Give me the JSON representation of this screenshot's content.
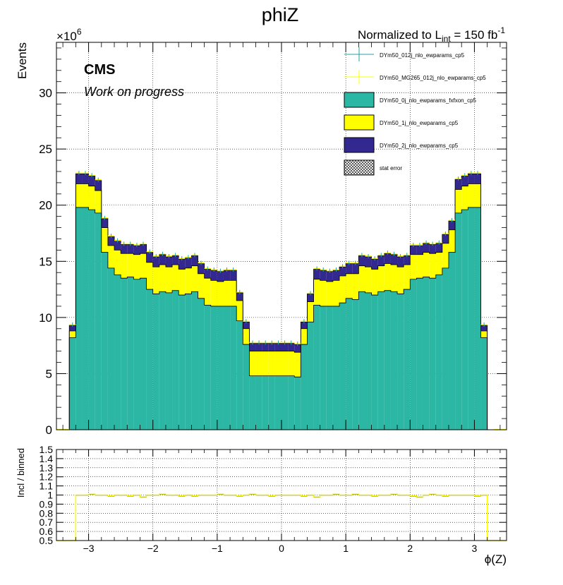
{
  "chart_data": [
    {
      "type": "bar",
      "title": "phiZ",
      "lumi_prefix": "Normalized to L",
      "lumi_sub": "int",
      "lumi_value": " = 150 fb",
      "lumi_sup": "-1",
      "experiment": "CMS",
      "status": "Work on progress",
      "ylabel": "Events",
      "xlabel": "ϕ(Z)",
      "exponent_base": "×10",
      "exponent_power": "6",
      "xlim": [
        -3.5,
        3.5
      ],
      "ylim": [
        0,
        34.5
      ],
      "grid": true,
      "legend_position": "top-right",
      "x_tick_labels": [
        "−3",
        "−2",
        "−1",
        "0",
        "1",
        "2",
        "3"
      ],
      "x_ticks": [
        -3,
        -2,
        -1,
        0,
        1,
        2,
        3
      ],
      "y_ticks": [
        0,
        5,
        10,
        15,
        20,
        25,
        30
      ],
      "y_tick_labels": [
        "0",
        "5",
        "10",
        "15",
        "20",
        "25",
        "30"
      ],
      "bin_edges": [
        -3.5,
        -3.3,
        -3.2,
        -3.1,
        -3.0,
        -2.9,
        -2.8,
        -2.7,
        -2.6,
        -2.5,
        -2.4,
        -2.3,
        -2.2,
        -2.1,
        -2.0,
        -1.9,
        -1.8,
        -1.7,
        -1.6,
        -1.5,
        -1.4,
        -1.3,
        -1.2,
        -1.1,
        -1.0,
        -0.9,
        -0.8,
        -0.7,
        -0.6,
        -0.5,
        -0.4,
        -0.3,
        -0.2,
        -0.1,
        0.0,
        0.1,
        0.2,
        0.3,
        0.4,
        0.5,
        0.6,
        0.7,
        0.8,
        0.9,
        1.0,
        1.1,
        1.2,
        1.3,
        1.4,
        1.5,
        1.6,
        1.7,
        1.8,
        1.9,
        2.0,
        2.1,
        2.2,
        2.3,
        2.4,
        2.5,
        2.6,
        2.7,
        2.8,
        2.9,
        3.0,
        3.1,
        3.2,
        3.3,
        3.5
      ],
      "series": [
        {
          "name": "DYm50_0j_nlo_ewparams_fxfxon_cp5",
          "color": "#2bb7a3",
          "values": [
            0,
            8.2,
            19.8,
            19.8,
            19.6,
            19.3,
            15.8,
            14.4,
            13.8,
            13.5,
            13.6,
            13.4,
            13.5,
            12.5,
            12.1,
            12.3,
            12.2,
            12.4,
            12.0,
            12.1,
            12.3,
            11.7,
            11.1,
            11.0,
            11.0,
            11.0,
            11.0,
            9.7,
            7.6,
            4.8,
            4.8,
            4.8,
            4.8,
            4.8,
            4.8,
            4.8,
            4.7,
            7.6,
            9.6,
            11.1,
            11.0,
            11.0,
            11.0,
            11.3,
            11.7,
            11.6,
            12.3,
            12.2,
            12.0,
            12.3,
            12.4,
            12.3,
            12.1,
            12.5,
            13.4,
            13.5,
            13.6,
            13.5,
            13.8,
            14.4,
            15.8,
            19.3,
            19.6,
            19.8,
            19.8,
            8.2,
            0
          ]
        },
        {
          "name": "DYm50_1j_nlo_ewparams_cp5",
          "color": "#ffff00",
          "values": [
            0,
            0.6,
            2.1,
            2.1,
            2.1,
            2.0,
            2.2,
            2.0,
            2.2,
            2.2,
            2.1,
            2.2,
            2.2,
            2.4,
            2.4,
            2.4,
            2.3,
            2.3,
            2.3,
            2.3,
            2.3,
            2.2,
            2.4,
            2.3,
            2.2,
            2.3,
            2.3,
            1.8,
            1.4,
            2.2,
            2.2,
            2.2,
            2.2,
            2.2,
            2.2,
            2.2,
            2.2,
            1.4,
            1.8,
            2.3,
            2.3,
            2.2,
            2.3,
            2.4,
            2.2,
            2.3,
            2.3,
            2.3,
            2.3,
            2.3,
            2.4,
            2.4,
            2.4,
            2.2,
            2.2,
            2.1,
            2.2,
            2.2,
            2.0,
            2.2,
            2.0,
            2.1,
            2.1,
            2.1,
            2.1,
            0.6,
            0
          ]
        },
        {
          "name": "DYm50_2j_nlo_ewparams_cp5",
          "color": "#33288f",
          "values": [
            0,
            0.5,
            0.9,
            0.9,
            0.9,
            0.9,
            0.8,
            0.8,
            0.8,
            0.8,
            0.8,
            0.8,
            0.8,
            0.9,
            0.9,
            0.9,
            0.9,
            0.8,
            0.9,
            0.9,
            0.9,
            0.9,
            0.8,
            0.9,
            0.9,
            0.9,
            0.9,
            0.7,
            0.6,
            0.7,
            0.7,
            0.7,
            0.7,
            0.7,
            0.7,
            0.7,
            0.7,
            0.6,
            0.7,
            0.9,
            0.9,
            0.9,
            0.9,
            0.8,
            0.9,
            0.9,
            0.9,
            0.9,
            0.9,
            0.9,
            0.9,
            0.9,
            0.9,
            0.8,
            0.8,
            0.8,
            0.8,
            0.8,
            0.8,
            0.8,
            0.8,
            0.9,
            0.9,
            0.9,
            0.9,
            0.5,
            0
          ]
        }
      ],
      "legend": [
        {
          "label": "DYm50_012j_nlo_ewparams_cp5",
          "style": "marker",
          "color": "#2a9fa8"
        },
        {
          "label": "DYm50_MG265_012j_nlo_ewparams_cp5",
          "style": "marker",
          "color": "#ffff00"
        },
        {
          "label": "DYm50_0j_nlo_ewparams_fxfxon_cp5",
          "style": "fill",
          "color": "#2bb7a3"
        },
        {
          "label": "DYm50_1j_nlo_ewparams_cp5",
          "style": "fill",
          "color": "#ffff00"
        },
        {
          "label": "DYm50_2j_nlo_ewparams_cp5",
          "style": "fill",
          "color": "#33288f"
        },
        {
          "label": "stat error",
          "style": "hatch",
          "color": "#000000"
        }
      ]
    },
    {
      "type": "line",
      "ylabel": "Incl / binned",
      "xlim": [
        -3.5,
        3.5
      ],
      "ylim": [
        0.5,
        1.5
      ],
      "grid": true,
      "y_ticks": [
        0.5,
        0.6,
        0.7,
        0.8,
        0.9,
        1.0,
        1.1,
        1.2,
        1.3,
        1.4,
        1.5
      ],
      "y_tick_labels": [
        "0.5",
        "0.6",
        "0.7",
        "0.8",
        "0.9",
        "1",
        "1.1",
        "1.2",
        "1.3",
        "1.4",
        "1.5"
      ],
      "series": [
        {
          "color": "#ffff00",
          "x_range": [
            -3.2,
            3.2
          ],
          "values": [
            1.0,
            1.0,
            1.01,
            1.0,
            1.0,
            0.99,
            1.0,
            1.0,
            0.99,
            1.0,
            0.98,
            1.0,
            1.0,
            1.01,
            1.0,
            1.0,
            0.99,
            1.0,
            0.99,
            1.0,
            1.0,
            1.0,
            1.01,
            1.0,
            1.0,
            0.99,
            1.0,
            1.01,
            1.0,
            1.0,
            0.99,
            1.0,
            1.0,
            1.0,
            1.0,
            0.99,
            1.0,
            0.98,
            1.0,
            1.0,
            1.01,
            1.0,
            1.0,
            1.01,
            1.0,
            1.0,
            0.99,
            1.0,
            1.0,
            1.01,
            1.0,
            1.0,
            0.99,
            0.98,
            1.0,
            1.01,
            1.0,
            0.99,
            1.0,
            1.0,
            1.0,
            1.0,
            0.99,
            1.0
          ]
        }
      ]
    }
  ]
}
